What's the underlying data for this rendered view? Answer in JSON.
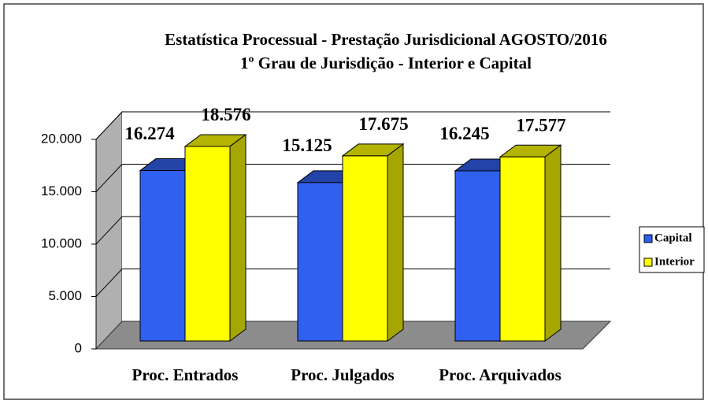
{
  "chart_data": {
    "type": "bar3d",
    "title": "Estatística Processual - Prestação Jurisdicional AGOSTO/2016",
    "subtitle": "1º Grau de Jurisdição - Interior e Capital",
    "categories": [
      "Proc. Entrados",
      "Proc. Julgados",
      "Proc. Arquivados"
    ],
    "series": [
      {
        "name": "Capital",
        "color": "#3060f0",
        "values": [
          16274,
          15125,
          16245
        ],
        "value_labels": [
          "16.274",
          "15.125",
          "16.245"
        ]
      },
      {
        "name": "Interior",
        "color": "#ffff00",
        "values": [
          18576,
          17675,
          17577
        ],
        "value_labels": [
          "18.576",
          "17.675",
          "17.577"
        ]
      }
    ],
    "ylim": [
      0,
      20000
    ],
    "yticks": [
      0,
      {
        "value": 5000,
        "label": "5.000"
      },
      {
        "value": 10000,
        "label": "10.000"
      },
      {
        "value": 15000,
        "label": "15.000"
      },
      {
        "value": 20000,
        "label": "20.000"
      }
    ],
    "grid": true,
    "legend": "right"
  }
}
